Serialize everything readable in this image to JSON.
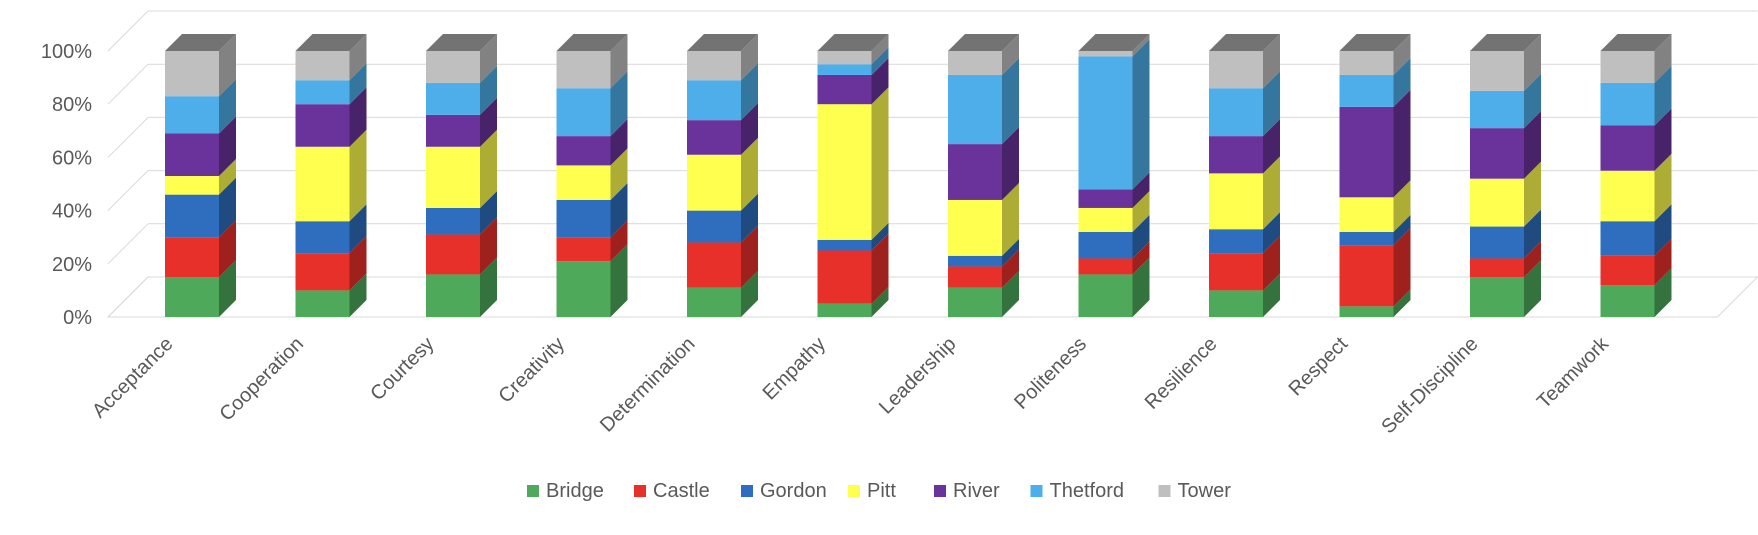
{
  "chart_data": {
    "type": "bar",
    "stacked": "100%",
    "style": "3d-stacked-column",
    "categories": [
      "Acceptance",
      "Cooperation",
      "Courtesy",
      "Creativity",
      "Determination",
      "Empathy",
      "Leadership",
      "Politeness",
      "Resilience",
      "Respect",
      "Self-Discipline",
      "Teamwork"
    ],
    "series": [
      {
        "name": "Bridge",
        "color": "#4EA95B",
        "values": [
          15,
          10,
          16,
          21,
          11,
          5,
          11,
          16,
          10,
          4,
          15,
          12
        ]
      },
      {
        "name": "Castle",
        "color": "#E8302A",
        "values": [
          15,
          14,
          15,
          9,
          17,
          20,
          8,
          6,
          14,
          23,
          7,
          11
        ]
      },
      {
        "name": "Gordon",
        "color": "#2F6EBE",
        "values": [
          16,
          12,
          10,
          14,
          12,
          4,
          4,
          10,
          9,
          5,
          12,
          13
        ]
      },
      {
        "name": "Pitt",
        "color": "#FFFF4F",
        "values": [
          7,
          28,
          23,
          13,
          21,
          51,
          21,
          9,
          21,
          13,
          18,
          19
        ]
      },
      {
        "name": "River",
        "color": "#6A339C",
        "values": [
          16,
          16,
          12,
          11,
          13,
          11,
          21,
          7,
          14,
          34,
          19,
          17
        ]
      },
      {
        "name": "Thetford",
        "color": "#4EAEEA",
        "values": [
          14,
          9,
          12,
          18,
          15,
          4,
          26,
          50,
          18,
          12,
          14,
          16
        ]
      },
      {
        "name": "Tower",
        "color": "#BFBFBF",
        "values": [
          17,
          11,
          12,
          14,
          11,
          5,
          9,
          2,
          14,
          9,
          15,
          12
        ]
      }
    ],
    "yticks": [
      "0%",
      "20%",
      "40%",
      "60%",
      "80%",
      "100%"
    ],
    "ylim": [
      0,
      100
    ],
    "grid": true,
    "legend": "bottom"
  }
}
